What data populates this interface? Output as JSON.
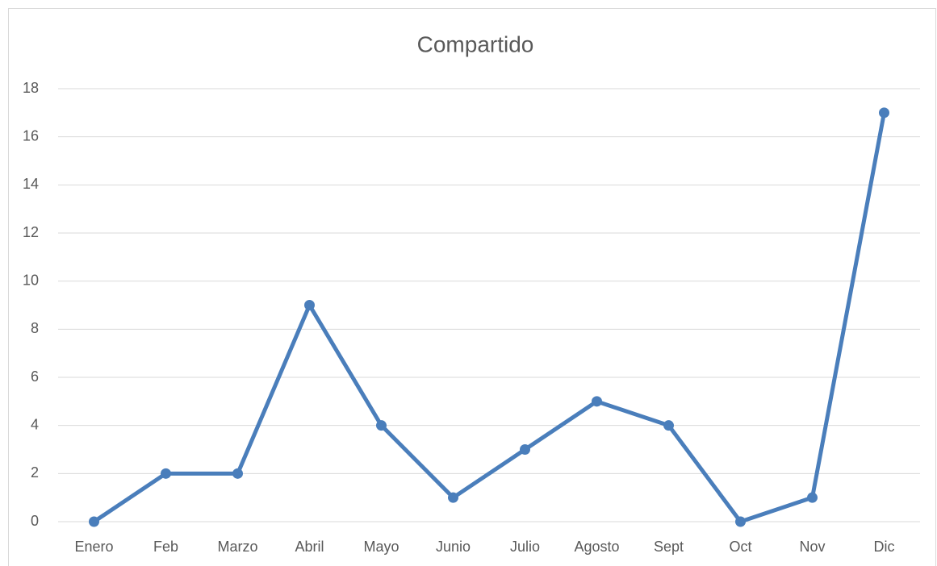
{
  "chart_data": {
    "type": "line",
    "title": "Compartido",
    "categories": [
      "Enero",
      "Feb",
      "Marzo",
      "Abril",
      "Mayo",
      "Junio",
      "Julio",
      "Agosto",
      "Sept",
      "Oct",
      "Nov",
      "Dic"
    ],
    "values": [
      0,
      2,
      2,
      9,
      4,
      1,
      3,
      5,
      4,
      0,
      1,
      17
    ],
    "color": "#4a7ebb",
    "ylim": [
      0,
      18
    ],
    "yticks": [
      0,
      2,
      4,
      6,
      8,
      10,
      12,
      14,
      16,
      18
    ],
    "grid": true
  }
}
